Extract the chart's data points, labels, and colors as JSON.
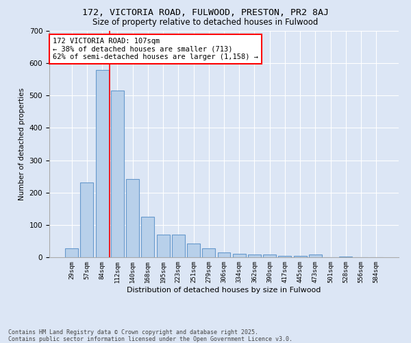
{
  "title_line1": "172, VICTORIA ROAD, FULWOOD, PRESTON, PR2 8AJ",
  "title_line2": "Size of property relative to detached houses in Fulwood",
  "xlabel": "Distribution of detached houses by size in Fulwood",
  "ylabel": "Number of detached properties",
  "categories": [
    "29sqm",
    "57sqm",
    "84sqm",
    "112sqm",
    "140sqm",
    "168sqm",
    "195sqm",
    "223sqm",
    "251sqm",
    "279sqm",
    "306sqm",
    "334sqm",
    "362sqm",
    "390sqm",
    "417sqm",
    "445sqm",
    "473sqm",
    "501sqm",
    "528sqm",
    "556sqm",
    "584sqm"
  ],
  "values": [
    27,
    232,
    580,
    516,
    242,
    125,
    70,
    70,
    43,
    27,
    15,
    10,
    9,
    9,
    5,
    5,
    8,
    0,
    2,
    0,
    1
  ],
  "bar_color": "#b8d0ea",
  "bar_edge_color": "#6699cc",
  "vline_index": 2.5,
  "vline_color": "red",
  "annotation_text": "172 VICTORIA ROAD: 107sqm\n← 38% of detached houses are smaller (713)\n62% of semi-detached houses are larger (1,158) →",
  "annotation_box_color": "white",
  "annotation_box_edge_color": "red",
  "background_color": "#dce6f5",
  "plot_background_color": "#dce6f5",
  "ylim": [
    0,
    700
  ],
  "yticks": [
    0,
    100,
    200,
    300,
    400,
    500,
    600,
    700
  ],
  "footer_line1": "Contains HM Land Registry data © Crown copyright and database right 2025.",
  "footer_line2": "Contains public sector information licensed under the Open Government Licence v3.0."
}
